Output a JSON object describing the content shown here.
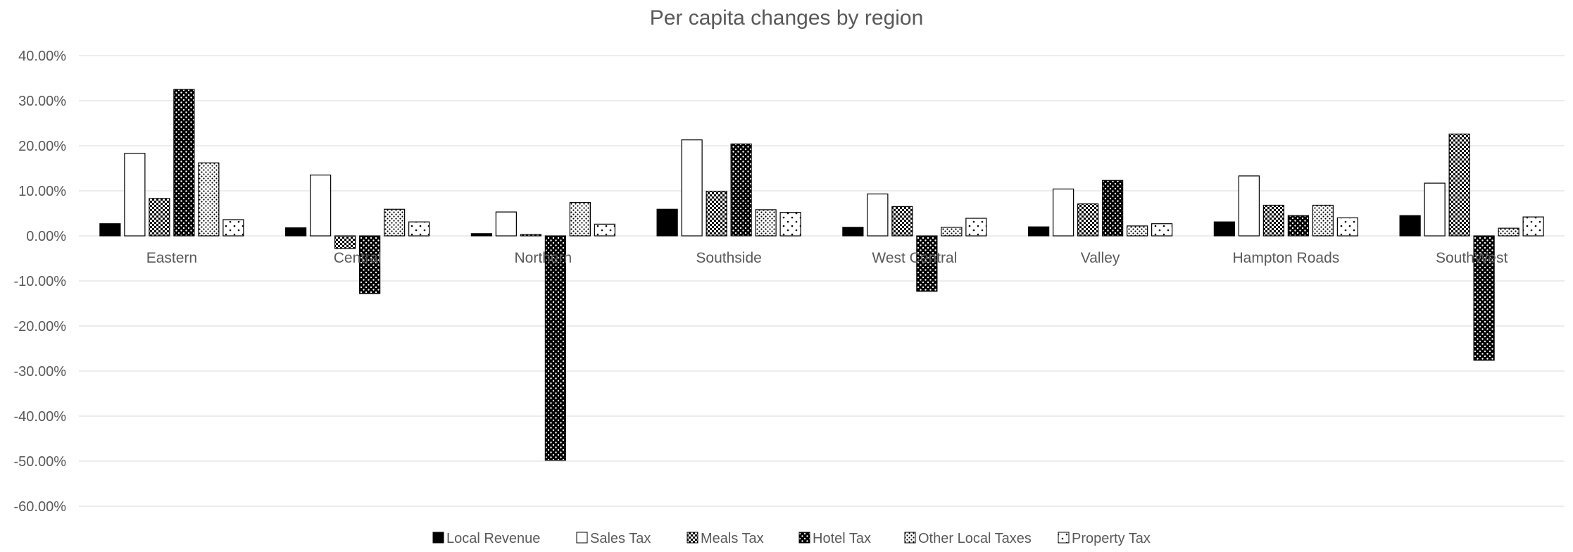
{
  "chart_data": {
    "type": "bar",
    "title": "Per capita changes by region",
    "xlabel": "",
    "ylabel": "",
    "ylim": [
      -60,
      40
    ],
    "ytick_step": 10,
    "ytick_labels": [
      "40.00%",
      "30.00%",
      "20.00%",
      "10.00%",
      "0.00%",
      "-10.00%",
      "-20.00%",
      "-30.00%",
      "-40.00%",
      "-50.00%",
      "-60.00%"
    ],
    "grid": true,
    "legend_position": "bottom",
    "categories": [
      "Eastern",
      "Central",
      "Northern",
      "Southside",
      "West Central",
      "Valley",
      "Hampton Roads",
      "SouthWest"
    ],
    "series": [
      {
        "name": "Local Revenue",
        "pattern": "solid",
        "values": [
          2.7,
          1.8,
          0.5,
          5.9,
          1.9,
          2.0,
          3.1,
          4.5
        ]
      },
      {
        "name": "Sales Tax",
        "pattern": "white",
        "values": [
          18.3,
          13.5,
          5.3,
          21.3,
          9.3,
          10.4,
          13.3,
          11.7
        ]
      },
      {
        "name": "Meals Tax",
        "pattern": "crosshatch",
        "values": [
          8.3,
          -2.8,
          0.3,
          9.9,
          6.5,
          7.1,
          6.8,
          22.6
        ]
      },
      {
        "name": "Hotel Tax",
        "pattern": "dark-dots",
        "values": [
          32.5,
          -12.8,
          -49.8,
          20.4,
          -12.3,
          12.3,
          4.5,
          -27.6
        ]
      },
      {
        "name": "Other Local Taxes",
        "pattern": "light-dots",
        "values": [
          16.2,
          5.9,
          7.4,
          5.8,
          1.9,
          2.2,
          6.8,
          1.7
        ]
      },
      {
        "name": "Property Tax",
        "pattern": "sparse-dots",
        "values": [
          3.6,
          3.1,
          2.6,
          5.2,
          3.9,
          2.7,
          4.0,
          4.2
        ]
      }
    ],
    "colors": {
      "bar_stroke": "#000000",
      "grid": "#d9d9d9",
      "text": "#595959",
      "fill_dark": "#000000",
      "fill_light": "#ffffff"
    }
  }
}
